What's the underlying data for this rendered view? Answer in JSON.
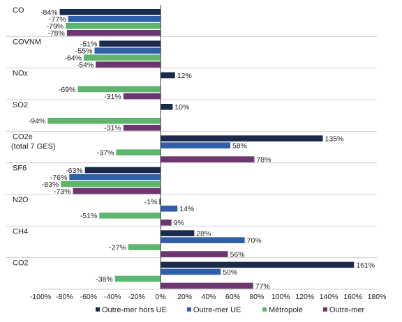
{
  "chart_data": {
    "type": "bar",
    "orientation": "horizontal",
    "categories": [
      "CO",
      "COVNM",
      "NOx",
      "SO2",
      "CO2e (total 7 GES)",
      "SF6",
      "N2O",
      "CH4",
      "CO2"
    ],
    "category_lines": [
      [
        "CO"
      ],
      [
        "COVNM"
      ],
      [
        "NOx"
      ],
      [
        "SO2"
      ],
      [
        "CO2e",
        "(total 7 GES)"
      ],
      [
        "SF6"
      ],
      [
        "N2O"
      ],
      [
        "CH4"
      ],
      [
        "CO2"
      ]
    ],
    "series": [
      {
        "name": "Outre-mer hors UE",
        "color": "#1b2a4a",
        "values": [
          -84,
          -51,
          12,
          10,
          135,
          -63,
          -1,
          28,
          161
        ]
      },
      {
        "name": "Outre-mer UE",
        "color": "#2e5fa8",
        "values": [
          -77,
          -55,
          null,
          null,
          58,
          -76,
          14,
          70,
          50
        ]
      },
      {
        "name": "Métropole",
        "color": "#5db56e",
        "values": [
          -79,
          -64,
          -69,
          -94,
          -37,
          -83,
          -51,
          -27,
          -38
        ]
      },
      {
        "name": "Outre-mer",
        "color": "#6e3670",
        "values": [
          -78,
          -54,
          -31,
          -31,
          78,
          -73,
          9,
          56,
          77
        ]
      }
    ],
    "xlim": [
      -100,
      180
    ],
    "xticks": [
      -100,
      -80,
      -60,
      -40,
      -20,
      0,
      20,
      40,
      60,
      80,
      100,
      120,
      140,
      160,
      180
    ],
    "tick_labels": [
      "-100%",
      "-80%",
      "-60%",
      "-40%",
      "-20%",
      "0%",
      "20%",
      "40%",
      "60%",
      "80%",
      "100%",
      "120%",
      "140%",
      "160%",
      "180%"
    ],
    "value_suffix": "%",
    "legend_position": "bottom",
    "category_separators": true,
    "grid": false
  }
}
